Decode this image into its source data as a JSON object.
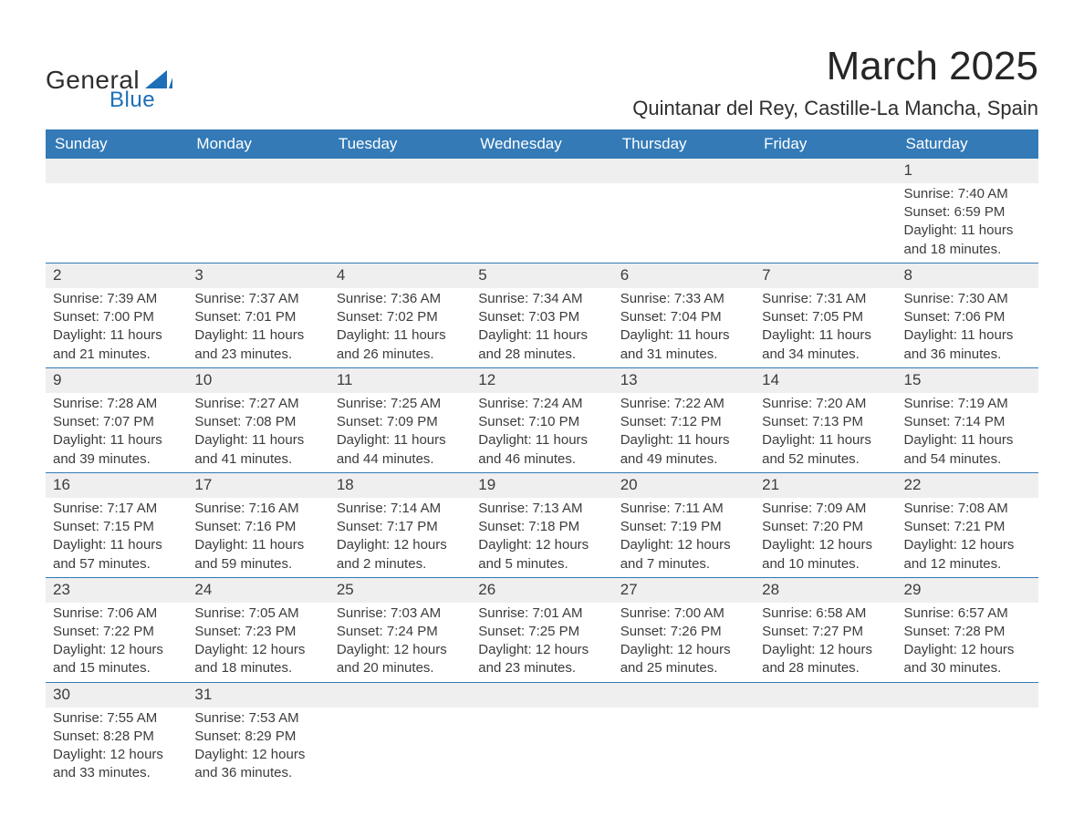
{
  "logo": {
    "text_general": "General",
    "text_blue": "Blue",
    "shape_color": "#1d6fb8"
  },
  "title": "March 2025",
  "subtitle": "Quintanar del Rey, Castille-La Mancha, Spain",
  "header_bg": "#337ab7",
  "daynum_bg": "#efefef",
  "text_color": "#3c3c3c",
  "day_headers": [
    "Sunday",
    "Monday",
    "Tuesday",
    "Wednesday",
    "Thursday",
    "Friday",
    "Saturday"
  ],
  "weeks": [
    [
      null,
      null,
      null,
      null,
      null,
      null,
      {
        "n": "1",
        "sr": "Sunrise: 7:40 AM",
        "ss": "Sunset: 6:59 PM",
        "dl1": "Daylight: 11 hours",
        "dl2": "and 18 minutes."
      }
    ],
    [
      {
        "n": "2",
        "sr": "Sunrise: 7:39 AM",
        "ss": "Sunset: 7:00 PM",
        "dl1": "Daylight: 11 hours",
        "dl2": "and 21 minutes."
      },
      {
        "n": "3",
        "sr": "Sunrise: 7:37 AM",
        "ss": "Sunset: 7:01 PM",
        "dl1": "Daylight: 11 hours",
        "dl2": "and 23 minutes."
      },
      {
        "n": "4",
        "sr": "Sunrise: 7:36 AM",
        "ss": "Sunset: 7:02 PM",
        "dl1": "Daylight: 11 hours",
        "dl2": "and 26 minutes."
      },
      {
        "n": "5",
        "sr": "Sunrise: 7:34 AM",
        "ss": "Sunset: 7:03 PM",
        "dl1": "Daylight: 11 hours",
        "dl2": "and 28 minutes."
      },
      {
        "n": "6",
        "sr": "Sunrise: 7:33 AM",
        "ss": "Sunset: 7:04 PM",
        "dl1": "Daylight: 11 hours",
        "dl2": "and 31 minutes."
      },
      {
        "n": "7",
        "sr": "Sunrise: 7:31 AM",
        "ss": "Sunset: 7:05 PM",
        "dl1": "Daylight: 11 hours",
        "dl2": "and 34 minutes."
      },
      {
        "n": "8",
        "sr": "Sunrise: 7:30 AM",
        "ss": "Sunset: 7:06 PM",
        "dl1": "Daylight: 11 hours",
        "dl2": "and 36 minutes."
      }
    ],
    [
      {
        "n": "9",
        "sr": "Sunrise: 7:28 AM",
        "ss": "Sunset: 7:07 PM",
        "dl1": "Daylight: 11 hours",
        "dl2": "and 39 minutes."
      },
      {
        "n": "10",
        "sr": "Sunrise: 7:27 AM",
        "ss": "Sunset: 7:08 PM",
        "dl1": "Daylight: 11 hours",
        "dl2": "and 41 minutes."
      },
      {
        "n": "11",
        "sr": "Sunrise: 7:25 AM",
        "ss": "Sunset: 7:09 PM",
        "dl1": "Daylight: 11 hours",
        "dl2": "and 44 minutes."
      },
      {
        "n": "12",
        "sr": "Sunrise: 7:24 AM",
        "ss": "Sunset: 7:10 PM",
        "dl1": "Daylight: 11 hours",
        "dl2": "and 46 minutes."
      },
      {
        "n": "13",
        "sr": "Sunrise: 7:22 AM",
        "ss": "Sunset: 7:12 PM",
        "dl1": "Daylight: 11 hours",
        "dl2": "and 49 minutes."
      },
      {
        "n": "14",
        "sr": "Sunrise: 7:20 AM",
        "ss": "Sunset: 7:13 PM",
        "dl1": "Daylight: 11 hours",
        "dl2": "and 52 minutes."
      },
      {
        "n": "15",
        "sr": "Sunrise: 7:19 AM",
        "ss": "Sunset: 7:14 PM",
        "dl1": "Daylight: 11 hours",
        "dl2": "and 54 minutes."
      }
    ],
    [
      {
        "n": "16",
        "sr": "Sunrise: 7:17 AM",
        "ss": "Sunset: 7:15 PM",
        "dl1": "Daylight: 11 hours",
        "dl2": "and 57 minutes."
      },
      {
        "n": "17",
        "sr": "Sunrise: 7:16 AM",
        "ss": "Sunset: 7:16 PM",
        "dl1": "Daylight: 11 hours",
        "dl2": "and 59 minutes."
      },
      {
        "n": "18",
        "sr": "Sunrise: 7:14 AM",
        "ss": "Sunset: 7:17 PM",
        "dl1": "Daylight: 12 hours",
        "dl2": "and 2 minutes."
      },
      {
        "n": "19",
        "sr": "Sunrise: 7:13 AM",
        "ss": "Sunset: 7:18 PM",
        "dl1": "Daylight: 12 hours",
        "dl2": "and 5 minutes."
      },
      {
        "n": "20",
        "sr": "Sunrise: 7:11 AM",
        "ss": "Sunset: 7:19 PM",
        "dl1": "Daylight: 12 hours",
        "dl2": "and 7 minutes."
      },
      {
        "n": "21",
        "sr": "Sunrise: 7:09 AM",
        "ss": "Sunset: 7:20 PM",
        "dl1": "Daylight: 12 hours",
        "dl2": "and 10 minutes."
      },
      {
        "n": "22",
        "sr": "Sunrise: 7:08 AM",
        "ss": "Sunset: 7:21 PM",
        "dl1": "Daylight: 12 hours",
        "dl2": "and 12 minutes."
      }
    ],
    [
      {
        "n": "23",
        "sr": "Sunrise: 7:06 AM",
        "ss": "Sunset: 7:22 PM",
        "dl1": "Daylight: 12 hours",
        "dl2": "and 15 minutes."
      },
      {
        "n": "24",
        "sr": "Sunrise: 7:05 AM",
        "ss": "Sunset: 7:23 PM",
        "dl1": "Daylight: 12 hours",
        "dl2": "and 18 minutes."
      },
      {
        "n": "25",
        "sr": "Sunrise: 7:03 AM",
        "ss": "Sunset: 7:24 PM",
        "dl1": "Daylight: 12 hours",
        "dl2": "and 20 minutes."
      },
      {
        "n": "26",
        "sr": "Sunrise: 7:01 AM",
        "ss": "Sunset: 7:25 PM",
        "dl1": "Daylight: 12 hours",
        "dl2": "and 23 minutes."
      },
      {
        "n": "27",
        "sr": "Sunrise: 7:00 AM",
        "ss": "Sunset: 7:26 PM",
        "dl1": "Daylight: 12 hours",
        "dl2": "and 25 minutes."
      },
      {
        "n": "28",
        "sr": "Sunrise: 6:58 AM",
        "ss": "Sunset: 7:27 PM",
        "dl1": "Daylight: 12 hours",
        "dl2": "and 28 minutes."
      },
      {
        "n": "29",
        "sr": "Sunrise: 6:57 AM",
        "ss": "Sunset: 7:28 PM",
        "dl1": "Daylight: 12 hours",
        "dl2": "and 30 minutes."
      }
    ],
    [
      {
        "n": "30",
        "sr": "Sunrise: 7:55 AM",
        "ss": "Sunset: 8:28 PM",
        "dl1": "Daylight: 12 hours",
        "dl2": "and 33 minutes."
      },
      {
        "n": "31",
        "sr": "Sunrise: 7:53 AM",
        "ss": "Sunset: 8:29 PM",
        "dl1": "Daylight: 12 hours",
        "dl2": "and 36 minutes."
      },
      null,
      null,
      null,
      null,
      null
    ]
  ]
}
